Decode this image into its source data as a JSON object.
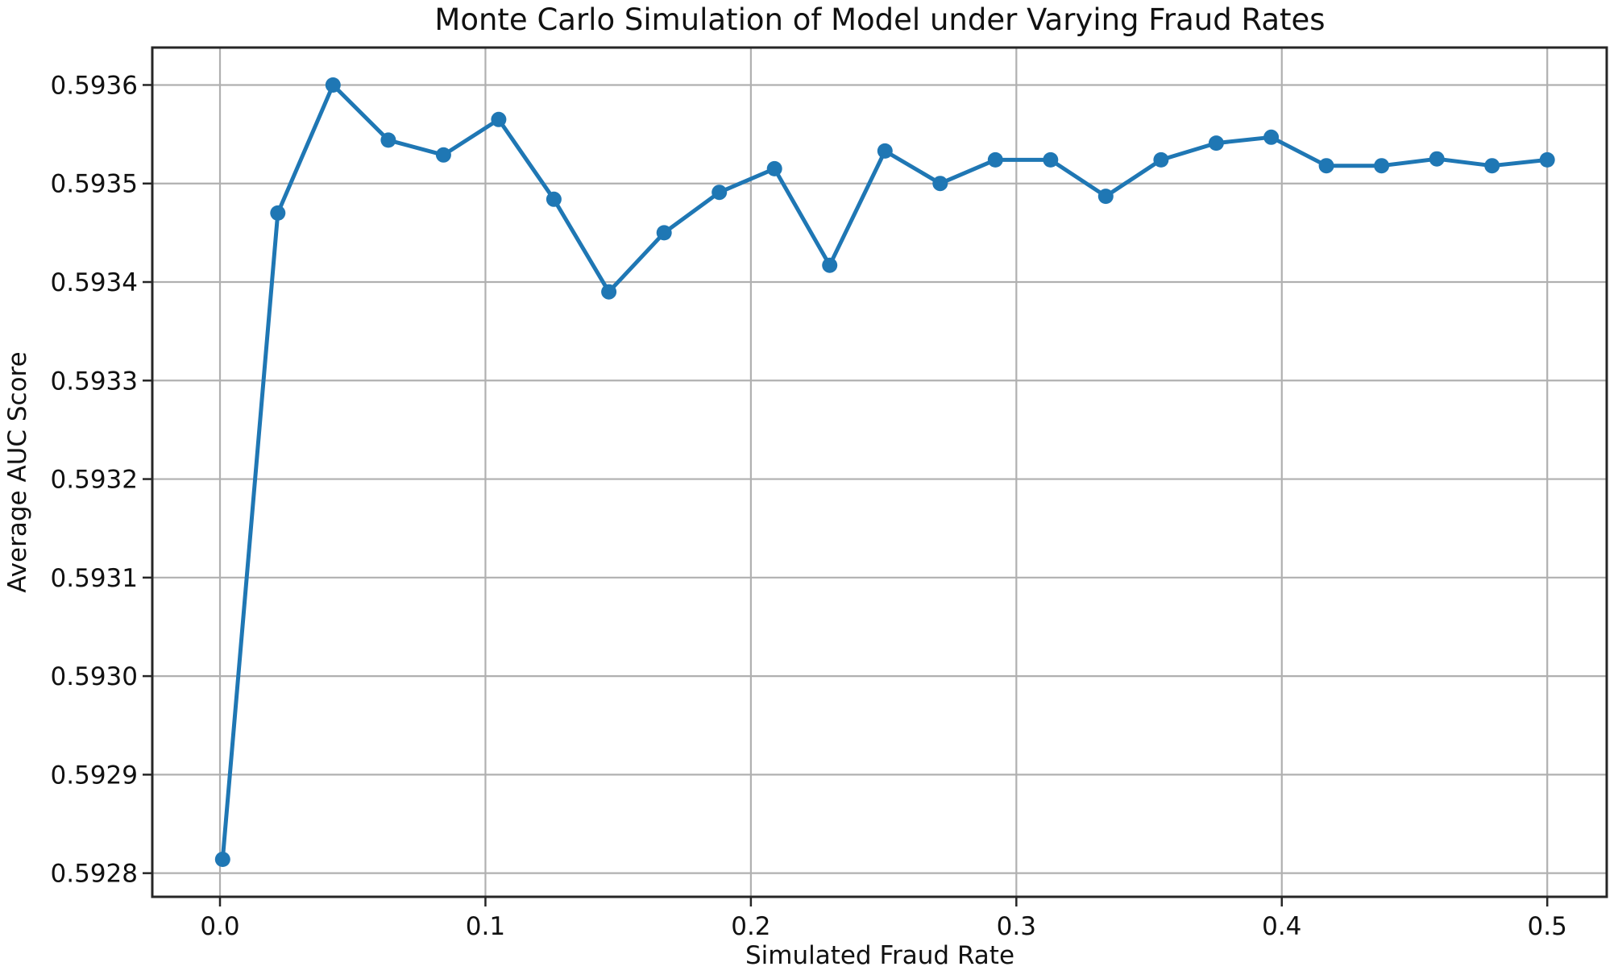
{
  "chart_data": {
    "type": "line",
    "title": "Monte Carlo Simulation of Model under Varying Fraud Rates",
    "xlabel": "Simulated Fraud Rate",
    "ylabel": "Average AUC Score",
    "grid": true,
    "legend": false,
    "xlim": [
      -0.0255,
      0.5224
    ],
    "ylim": [
      0.592776,
      0.593638
    ],
    "x_ticks": {
      "values": [
        0.0,
        0.1,
        0.2,
        0.3,
        0.4,
        0.5
      ],
      "labels": [
        "0.0",
        "0.1",
        "0.2",
        "0.3",
        "0.4",
        "0.5"
      ]
    },
    "y_ticks": {
      "values": [
        0.5928,
        0.5929,
        0.593,
        0.5931,
        0.5932,
        0.5933,
        0.5934,
        0.5935,
        0.5936
      ],
      "labels": [
        "0.5928",
        "0.5929",
        "0.5930",
        "0.5931",
        "0.5932",
        "0.5933",
        "0.5934",
        "0.5935",
        "0.5936"
      ]
    },
    "series": [
      {
        "name": "Average AUC Score",
        "color": "#1f77b4",
        "marker": "circle",
        "x": [
          0.001,
          0.0218,
          0.0426,
          0.0634,
          0.0842,
          0.105,
          0.1258,
          0.1465,
          0.1673,
          0.1881,
          0.2089,
          0.2297,
          0.2505,
          0.2713,
          0.2921,
          0.3129,
          0.3337,
          0.3545,
          0.3753,
          0.396,
          0.4168,
          0.4376,
          0.4584,
          0.4792,
          0.5
        ],
        "y": [
          0.592814,
          0.59347,
          0.5936,
          0.593544,
          0.593529,
          0.593565,
          0.593484,
          0.59339,
          0.59345,
          0.593491,
          0.593515,
          0.593417,
          0.593533,
          0.5935,
          0.593524,
          0.593524,
          0.593487,
          0.593524,
          0.593541,
          0.593547,
          0.593518,
          0.593518,
          0.593525,
          0.593518,
          0.593524
        ]
      }
    ],
    "style": {
      "line_color": "#1f77b4",
      "grid_color": "#b0b0b0",
      "spine_color": "#262626",
      "text_color": "#111111",
      "background": "#ffffff"
    }
  }
}
